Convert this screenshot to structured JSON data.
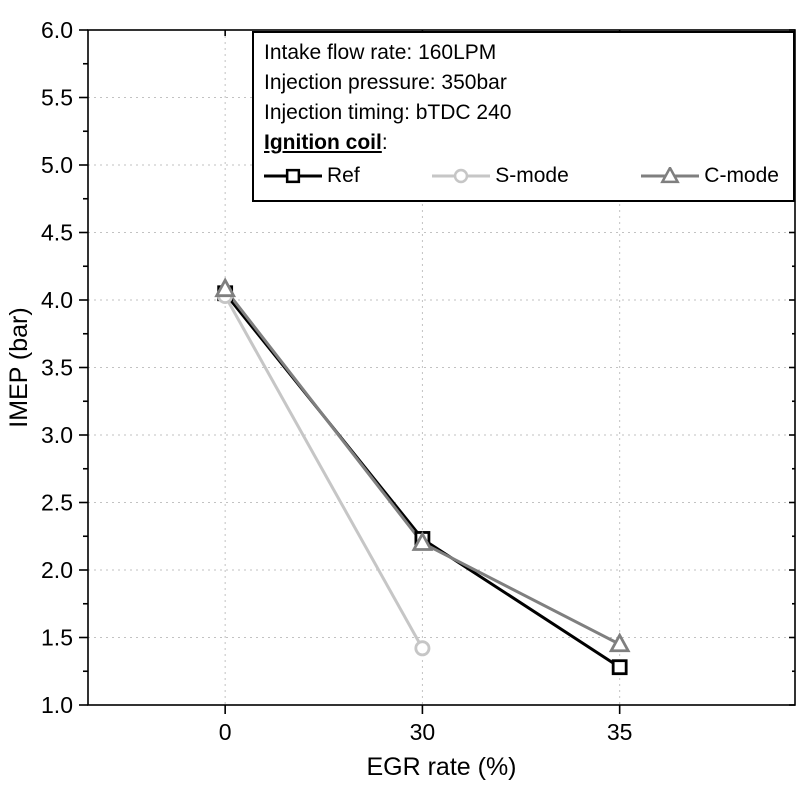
{
  "chart_data": {
    "type": "line",
    "title": "",
    "xlabel": "EGR rate (%)",
    "ylabel": "IMEP (bar)",
    "categories": [
      "0",
      "30",
      "35"
    ],
    "ylim": [
      1.0,
      6.0
    ],
    "ytick_step": 0.5,
    "grid": "dotted",
    "legend_position": "top-right",
    "series": [
      {
        "name": "Ref",
        "marker": "square",
        "color": "#000000",
        "values": [
          4.05,
          2.23,
          1.28
        ]
      },
      {
        "name": "S-mode",
        "marker": "circle",
        "color": "#c6c6c6",
        "values": [
          4.03,
          1.42,
          null
        ]
      },
      {
        "name": "C-mode",
        "marker": "triangle",
        "color": "#7f7f7f",
        "values": [
          4.08,
          2.2,
          1.45
        ]
      }
    ],
    "legend": {
      "info_lines": [
        "Intake flow rate: 160LPM",
        "Injection pressure: 350bar",
        "Injection timing: bTDC 240"
      ],
      "section_label": "Ignition coil",
      "section_label_suffix": ":"
    }
  }
}
